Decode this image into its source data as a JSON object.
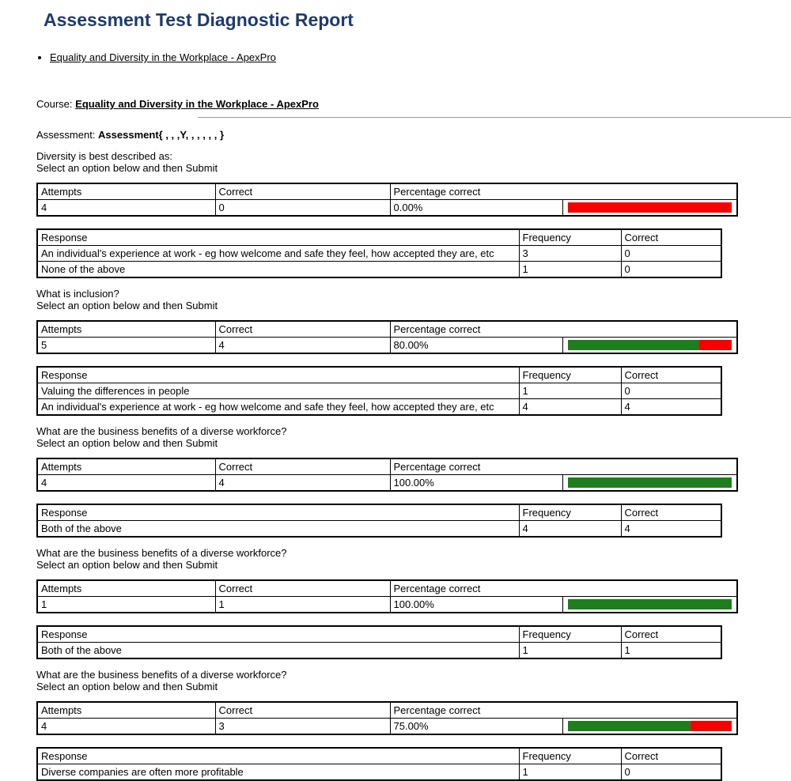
{
  "page": {
    "title": "Assessment Test Diagnostic Report",
    "course_bullet_link": "Equality and Diversity in the Workplace - ApexPro",
    "course_label": "Course:",
    "course_link": "Equality and Diversity in the Workplace - ApexPro",
    "assessment_label": "Assessment:",
    "assessment_value": "Assessment{ , , ,Y, , , , , , }"
  },
  "table_labels": {
    "attempts": "Attempts",
    "correct": "Correct",
    "percentage_correct": "Percentage correct",
    "response": "Response",
    "frequency": "Frequency"
  },
  "colors": {
    "title_blue": "#1f3a6e",
    "bar_green": "#1e7e1e",
    "bar_red": "#f80000",
    "divider_gray": "#999999"
  },
  "questions": [
    {
      "question": "Diversity is best described as:",
      "instruction": "Select an option below and then Submit",
      "attempts": "4",
      "correct": "0",
      "percentage": "0.00%",
      "percent_value": 0,
      "responses": [
        {
          "response": "An individual's experience at work - eg how welcome and safe they feel, how accepted they are, etc",
          "frequency": "3",
          "correct": "0"
        },
        {
          "response": "None of the above",
          "frequency": "1",
          "correct": "0"
        }
      ]
    },
    {
      "question": "What is inclusion?",
      "instruction": "Select an option below and then Submit",
      "attempts": "5",
      "correct": "4",
      "percentage": "80.00%",
      "percent_value": 80,
      "responses": [
        {
          "response": "Valuing the differences in people",
          "frequency": "1",
          "correct": "0"
        },
        {
          "response": "An individual's experience at work - eg how welcome and safe they feel, how accepted they are, etc",
          "frequency": "4",
          "correct": "4"
        }
      ]
    },
    {
      "question": "What are the business benefits of a diverse workforce?",
      "instruction": "Select an option below and then Submit",
      "attempts": "4",
      "correct": "4",
      "percentage": "100.00%",
      "percent_value": 100,
      "responses": [
        {
          "response": "Both of the above",
          "frequency": "4",
          "correct": "4"
        }
      ]
    },
    {
      "question": "What are the business benefits of a diverse workforce?",
      "instruction": "Select an option below and then Submit",
      "attempts": "1",
      "correct": "1",
      "percentage": "100.00%",
      "percent_value": 100,
      "responses": [
        {
          "response": "Both of the above",
          "frequency": "1",
          "correct": "1"
        }
      ]
    },
    {
      "question": "What are the business benefits of a diverse workforce?",
      "instruction": "Select an option below and then Submit",
      "attempts": "4",
      "correct": "3",
      "percentage": "75.00%",
      "percent_value": 75,
      "responses": [
        {
          "response": "Diverse companies are often more profitable",
          "frequency": "1",
          "correct": "0"
        }
      ]
    }
  ]
}
